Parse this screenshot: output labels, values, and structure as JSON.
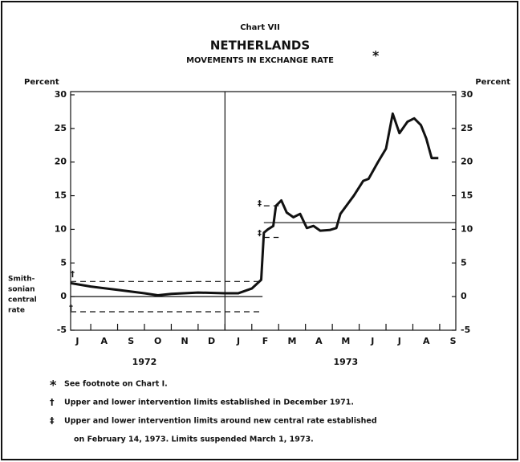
{
  "chart_data": {
    "type": "line",
    "title": "NETHERLANDS",
    "supertitle": "Chart VII",
    "subtitle": "MOVEMENTS IN EXCHANGE RATE",
    "subtitle_mark": "*",
    "ylabel": "Percent",
    "y2label": "Percent",
    "xlim": [
      0.25,
      14.6
    ],
    "xticks": [
      {
        "value": 0.5,
        "label": "J"
      },
      {
        "value": 1.5,
        "label": "A"
      },
      {
        "value": 2.5,
        "label": "S"
      },
      {
        "value": 3.5,
        "label": "O"
      },
      {
        "value": 4.5,
        "label": "N"
      },
      {
        "value": 5.5,
        "label": "D"
      },
      {
        "value": 6.5,
        "label": "J"
      },
      {
        "value": 7.5,
        "label": "F"
      },
      {
        "value": 8.5,
        "label": "M"
      },
      {
        "value": 9.5,
        "label": "A"
      },
      {
        "value": 10.5,
        "label": "M"
      },
      {
        "value": 11.5,
        "label": "J"
      },
      {
        "value": 12.5,
        "label": "J"
      },
      {
        "value": 13.5,
        "label": "A"
      },
      {
        "value": 14.5,
        "label": "S"
      }
    ],
    "years": [
      {
        "value": 3,
        "label": "1972"
      },
      {
        "value": 10.5,
        "label": "1973"
      }
    ],
    "year_divider": 6,
    "ylim": [
      -5,
      30
    ],
    "yticks": [
      -5,
      0,
      5,
      10,
      15,
      20,
      25,
      30
    ],
    "y2lim": [
      -5,
      30
    ],
    "y2ticks": [
      -5,
      0,
      5,
      10,
      15,
      20,
      25,
      30
    ],
    "series": [
      {
        "color": "#111111",
        "x": [
          0.25,
          1,
          2,
          3,
          3.5,
          4,
          5,
          6,
          6.5,
          7,
          7.35,
          7.45,
          7.6,
          7.8,
          7.9,
          8.1,
          8.3,
          8.55,
          8.8,
          9.05,
          9.3,
          9.55,
          9.9,
          10.15,
          10.3,
          10.8,
          11.15,
          11.35,
          11.7,
          12.0,
          12.25,
          12.5,
          12.8,
          13.05,
          13.3,
          13.5,
          13.7,
          13.95
        ],
        "values": [
          2.0,
          1.5,
          1.0,
          0.5,
          0.2,
          0.4,
          0.6,
          0.5,
          0.5,
          1.2,
          2.5,
          9.5,
          10.0,
          10.5,
          13.5,
          14.3,
          12.5,
          11.8,
          12.3,
          10.2,
          10.5,
          9.8,
          9.9,
          10.2,
          12.3,
          15.0,
          17.2,
          17.5,
          20.0,
          22.0,
          27.2,
          24.3,
          26.0,
          26.5,
          25.5,
          23.5,
          20.6,
          20.6
        ]
      }
    ],
    "reference_lines": [
      {
        "value": 0,
        "x": [
          0.25,
          7.4
        ],
        "style": "solid"
      },
      {
        "value": 2.25,
        "x": [
          0.25,
          7.4
        ],
        "style": "dashed"
      },
      {
        "value": -2.25,
        "x": [
          0.25,
          7.4
        ],
        "style": "dashed"
      },
      {
        "value": 11,
        "x": [
          7.45,
          14.6
        ],
        "style": "solid"
      },
      {
        "value": 13.5,
        "x": [
          7.45,
          8.0
        ],
        "style": "dashed"
      },
      {
        "value": 8.8,
        "x": [
          7.45,
          8.0
        ],
        "style": "dashed"
      }
    ],
    "central_rate_label": [
      "Smith-",
      "sonian",
      "central",
      "rate"
    ],
    "footnotes": [
      {
        "symbol": "*",
        "lines": [
          "See footnote on Chart I."
        ]
      },
      {
        "symbol": "†",
        "lines": [
          "Upper and lower intervention limits established in December 1971."
        ]
      },
      {
        "symbol": "‡",
        "lines": [
          "Upper and lower intervention limits around new central rate established",
          "on February 14, 1973.  Limits suspended March 1, 1973."
        ]
      }
    ]
  }
}
